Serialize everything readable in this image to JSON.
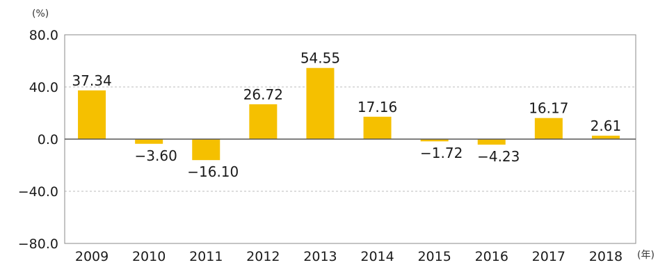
{
  "chart_data": {
    "type": "bar",
    "categories": [
      "2009",
      "2010",
      "2011",
      "2012",
      "2013",
      "2014",
      "2015",
      "2016",
      "2017",
      "2018"
    ],
    "values": [
      37.34,
      -3.6,
      -16.1,
      26.72,
      54.55,
      17.16,
      -1.72,
      -4.23,
      16.17,
      2.61
    ],
    "value_labels": [
      "37.34",
      "−3.60",
      "−16.10",
      "26.72",
      "54.55",
      "17.16",
      "−1.72",
      "−4.23",
      "16.17",
      "2.61"
    ],
    "y_unit": "(%)",
    "x_unit": "(年)",
    "ylim": [
      -80,
      80
    ],
    "y_ticks": [
      80,
      40,
      0,
      -40,
      -80
    ],
    "y_tick_labels": [
      "80.0",
      "40.0",
      "0.0",
      "−40.0",
      "−80.0"
    ],
    "grid": "dashed horizontal",
    "bar_color": "#f5c000",
    "axis_color": "#555555",
    "grid_color": "#bbbbbb"
  }
}
